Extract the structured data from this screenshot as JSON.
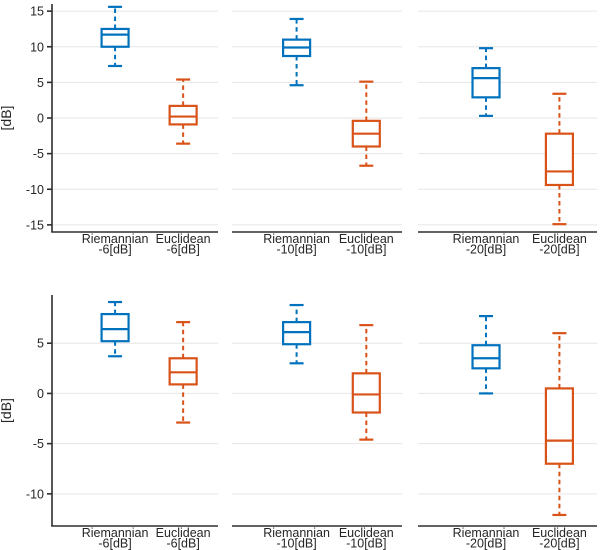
{
  "figure": {
    "background": "#ffffff",
    "font_color": "#262626",
    "grid_color": "#e6e6e6",
    "axis_color": "#2e2e2e",
    "riemannian_color": "#0072BD",
    "euclidean_color": "#D95319"
  },
  "chart_data": [
    {
      "type": "boxplot",
      "position": "top-row",
      "title": "",
      "ylabel": "[dB]",
      "xlabel": "",
      "ylim": [
        -16,
        16
      ],
      "yticks": [
        15,
        10,
        5,
        0,
        -5,
        -10,
        -15
      ],
      "grid": true,
      "legend_position": "none",
      "groups": [
        "-6[dB]",
        "-10[dB]",
        "-20[dB]"
      ],
      "series": [
        {
          "name": "Riemannian",
          "color": "#0072BD",
          "box_style": "solid",
          "whisker_style": "dashed"
        },
        {
          "name": "Euclidean",
          "color": "#D95319",
          "box_style": "solid",
          "whisker_style": "dashed"
        }
      ],
      "panels": [
        {
          "group": "-6[dB]",
          "boxes": [
            {
              "series": "Riemannian",
              "xlabel_line1": "Riemannian",
              "xlabel_line2": "-6[dB]",
              "whislo": 7.3,
              "q1": 10.0,
              "med": 11.7,
              "q3": 12.5,
              "whishi": 15.6
            },
            {
              "series": "Euclidean",
              "xlabel_line1": "Euclidean",
              "xlabel_line2": "-6[dB]",
              "whislo": -3.6,
              "q1": -0.9,
              "med": 0.2,
              "q3": 1.7,
              "whishi": 5.4
            }
          ]
        },
        {
          "group": "-10[dB]",
          "boxes": [
            {
              "series": "Riemannian",
              "xlabel_line1": "Riemannian",
              "xlabel_line2": "-10[dB]",
              "whislo": 4.6,
              "q1": 8.7,
              "med": 9.9,
              "q3": 11.0,
              "whishi": 13.9
            },
            {
              "series": "Euclidean",
              "xlabel_line1": "Euclidean",
              "xlabel_line2": "-10[dB]",
              "whislo": -6.7,
              "q1": -4.0,
              "med": -2.2,
              "q3": -0.4,
              "whishi": 5.1
            }
          ]
        },
        {
          "group": "-20[dB]",
          "boxes": [
            {
              "series": "Riemannian",
              "xlabel_line1": "Riemannian",
              "xlabel_line2": "-20[dB]",
              "whislo": 0.3,
              "q1": 2.9,
              "med": 5.6,
              "q3": 7.0,
              "whishi": 9.8
            },
            {
              "series": "Euclidean",
              "xlabel_line1": "Euclidean",
              "xlabel_line2": "-20[dB]",
              "whislo": -14.9,
              "q1": -9.4,
              "med": -7.5,
              "q3": -2.2,
              "whishi": 3.4
            }
          ]
        }
      ]
    },
    {
      "type": "boxplot",
      "position": "bottom-row",
      "title": "",
      "ylabel": "[dB]",
      "xlabel": "",
      "ylim": [
        -13.2,
        9.8
      ],
      "yticks": [
        5,
        0,
        -5,
        -10
      ],
      "grid": true,
      "legend_position": "none",
      "groups": [
        "-6[dB]",
        "-10[dB]",
        "-20[dB]"
      ],
      "series": [
        {
          "name": "Riemannian",
          "color": "#0072BD",
          "box_style": "solid",
          "whisker_style": "dashed"
        },
        {
          "name": "Euclidean",
          "color": "#D95319",
          "box_style": "solid",
          "whisker_style": "dashed"
        }
      ],
      "panels": [
        {
          "group": "-6[dB]",
          "boxes": [
            {
              "series": "Riemannian",
              "xlabel_line1": "Riemannian",
              "xlabel_line2": "-6[dB]",
              "whislo": 3.7,
              "q1": 5.2,
              "med": 6.4,
              "q3": 7.9,
              "whishi": 9.1
            },
            {
              "series": "Euclidean",
              "xlabel_line1": "Euclidean",
              "xlabel_line2": "-6[dB]",
              "whislo": -2.9,
              "q1": 0.9,
              "med": 2.1,
              "q3": 3.5,
              "whishi": 7.1
            }
          ]
        },
        {
          "group": "-10[dB]",
          "boxes": [
            {
              "series": "Riemannian",
              "xlabel_line1": "Riemannian",
              "xlabel_line2": "-10[dB]",
              "whislo": 3.0,
              "q1": 4.9,
              "med": 6.1,
              "q3": 7.1,
              "whishi": 8.8
            },
            {
              "series": "Euclidean",
              "xlabel_line1": "Euclidean",
              "xlabel_line2": "-10[dB]",
              "whislo": -4.6,
              "q1": -1.9,
              "med": -0.1,
              "q3": 2.0,
              "whishi": 6.8
            }
          ]
        },
        {
          "group": "-20[dB]",
          "boxes": [
            {
              "series": "Riemannian",
              "xlabel_line1": "Riemannian",
              "xlabel_line2": "-20[dB]",
              "whislo": 0.0,
              "q1": 2.5,
              "med": 3.5,
              "q3": 4.8,
              "whishi": 7.7
            },
            {
              "series": "Euclidean",
              "xlabel_line1": "Euclidean",
              "xlabel_line2": "-20[dB]",
              "whislo": -12.1,
              "q1": -7.0,
              "med": -4.7,
              "q3": 0.5,
              "whishi": 6.0
            }
          ]
        }
      ]
    }
  ]
}
